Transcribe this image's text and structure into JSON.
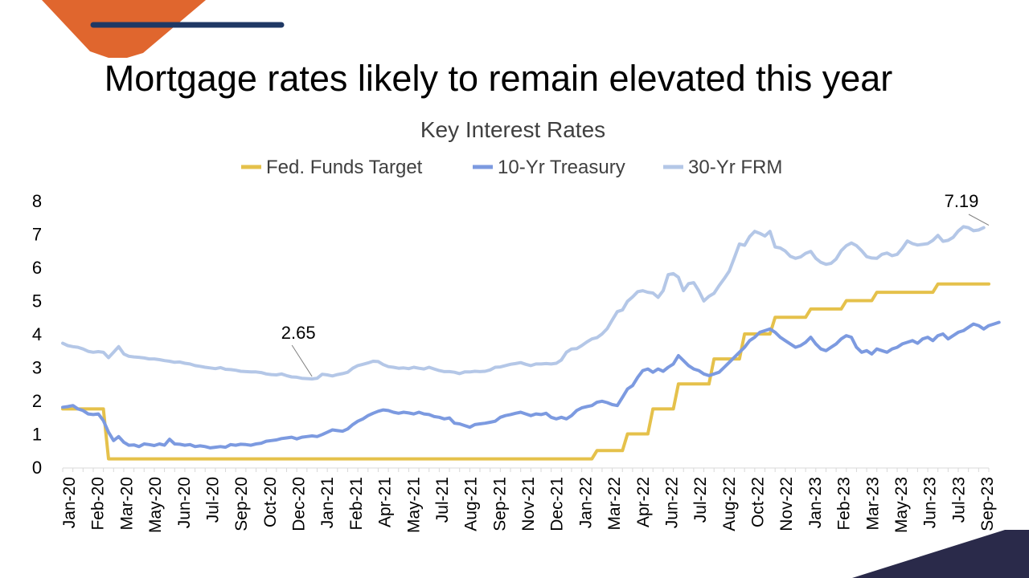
{
  "slide": {
    "title": "Mortgage rates likely to remain elevated this year"
  },
  "chart_data": {
    "type": "line",
    "title": "Key Interest Rates",
    "xlabel": "",
    "ylabel": "",
    "ylim": [
      0,
      8
    ],
    "yticks": [
      "0",
      "1",
      "2",
      "3",
      "4",
      "5",
      "6",
      "7",
      "8"
    ],
    "legend_position": "top-center",
    "xticks": [
      "Jan-20",
      "Feb-20",
      "Mar-20",
      "May-20",
      "Jun-20",
      "Jul-20",
      "Sep-20",
      "Oct-20",
      "Dec-20",
      "Jan-21",
      "Feb-21",
      "Apr-21",
      "May-21",
      "Jul-21",
      "Aug-21",
      "Sep-21",
      "Nov-21",
      "Dec-21",
      "Jan-22",
      "Mar-22",
      "Apr-22",
      "Jun-22",
      "Jul-22",
      "Aug-22",
      "Oct-22",
      "Nov-22",
      "Jan-23",
      "Feb-23",
      "Mar-23",
      "May-23",
      "Jun-23",
      "Jul-23",
      "Sep-23"
    ],
    "series": [
      {
        "name": "Fed. Funds Target",
        "color": "#E5C14B",
        "values": [
          1.75,
          1.75,
          1.75,
          1.75,
          1.75,
          1.75,
          1.75,
          1.75,
          1.75,
          0.25,
          0.25,
          0.25,
          0.25,
          0.25,
          0.25,
          0.25,
          0.25,
          0.25,
          0.25,
          0.25,
          0.25,
          0.25,
          0.25,
          0.25,
          0.25,
          0.25,
          0.25,
          0.25,
          0.25,
          0.25,
          0.25,
          0.25,
          0.25,
          0.25,
          0.25,
          0.25,
          0.25,
          0.25,
          0.25,
          0.25,
          0.25,
          0.25,
          0.25,
          0.25,
          0.25,
          0.25,
          0.25,
          0.25,
          0.25,
          0.25,
          0.25,
          0.25,
          0.25,
          0.25,
          0.25,
          0.25,
          0.25,
          0.25,
          0.25,
          0.25,
          0.25,
          0.25,
          0.25,
          0.25,
          0.25,
          0.25,
          0.25,
          0.25,
          0.25,
          0.25,
          0.25,
          0.25,
          0.25,
          0.25,
          0.25,
          0.25,
          0.25,
          0.25,
          0.25,
          0.25,
          0.25,
          0.25,
          0.25,
          0.25,
          0.25,
          0.25,
          0.25,
          0.25,
          0.25,
          0.25,
          0.25,
          0.25,
          0.25,
          0.25,
          0.25,
          0.25,
          0.25,
          0.25,
          0.25,
          0.25,
          0.25,
          0.25,
          0.25,
          0.25,
          0.25,
          0.5,
          0.5,
          0.5,
          0.5,
          0.5,
          0.5,
          1.0,
          1.0,
          1.0,
          1.0,
          1.0,
          1.75,
          1.75,
          1.75,
          1.75,
          1.75,
          2.5,
          2.5,
          2.5,
          2.5,
          2.5,
          2.5,
          2.5,
          3.25,
          3.25,
          3.25,
          3.25,
          3.25,
          3.25,
          4.0,
          4.0,
          4.0,
          4.0,
          4.0,
          4.0,
          4.5,
          4.5,
          4.5,
          4.5,
          4.5,
          4.5,
          4.5,
          4.75,
          4.75,
          4.75,
          4.75,
          4.75,
          4.75,
          4.75,
          5.0,
          5.0,
          5.0,
          5.0,
          5.0,
          5.0,
          5.25,
          5.25,
          5.25,
          5.25,
          5.25,
          5.25,
          5.25,
          5.25,
          5.25,
          5.25,
          5.25,
          5.25,
          5.5,
          5.5,
          5.5,
          5.5,
          5.5,
          5.5,
          5.5,
          5.5,
          5.5,
          5.5,
          5.5
        ]
      },
      {
        "name": "10-Yr Treasury",
        "color": "#7C9AE0",
        "values": [
          1.8,
          1.82,
          1.85,
          1.75,
          1.7,
          1.6,
          1.58,
          1.6,
          1.4,
          1.05,
          0.8,
          0.92,
          0.75,
          0.66,
          0.67,
          0.62,
          0.7,
          0.68,
          0.65,
          0.7,
          0.66,
          0.84,
          0.7,
          0.69,
          0.66,
          0.68,
          0.62,
          0.64,
          0.62,
          0.58,
          0.6,
          0.62,
          0.6,
          0.68,
          0.66,
          0.69,
          0.68,
          0.66,
          0.7,
          0.72,
          0.78,
          0.8,
          0.82,
          0.86,
          0.88,
          0.9,
          0.85,
          0.9,
          0.92,
          0.94,
          0.92,
          0.98,
          1.05,
          1.12,
          1.1,
          1.08,
          1.15,
          1.28,
          1.38,
          1.45,
          1.55,
          1.62,
          1.68,
          1.72,
          1.7,
          1.65,
          1.62,
          1.65,
          1.63,
          1.6,
          1.65,
          1.6,
          1.58,
          1.52,
          1.5,
          1.45,
          1.48,
          1.32,
          1.3,
          1.25,
          1.2,
          1.28,
          1.3,
          1.32,
          1.35,
          1.38,
          1.5,
          1.55,
          1.58,
          1.62,
          1.65,
          1.6,
          1.55,
          1.6,
          1.58,
          1.62,
          1.5,
          1.45,
          1.5,
          1.45,
          1.55,
          1.7,
          1.78,
          1.82,
          1.85,
          1.95,
          1.98,
          1.94,
          1.88,
          1.85,
          2.1,
          2.35,
          2.45,
          2.7,
          2.9,
          2.95,
          2.85,
          2.95,
          2.88,
          3.0,
          3.1,
          3.35,
          3.2,
          3.05,
          2.95,
          2.9,
          2.8,
          2.75,
          2.8,
          2.85,
          3.0,
          3.15,
          3.3,
          3.45,
          3.6,
          3.8,
          3.9,
          4.05,
          4.1,
          4.15,
          4.05,
          3.9,
          3.8,
          3.7,
          3.6,
          3.65,
          3.75,
          3.9,
          3.7,
          3.55,
          3.5,
          3.6,
          3.7,
          3.85,
          3.95,
          3.9,
          3.6,
          3.45,
          3.5,
          3.4,
          3.55,
          3.5,
          3.45,
          3.55,
          3.6,
          3.7,
          3.75,
          3.8,
          3.72,
          3.85,
          3.9,
          3.8,
          3.95,
          4.0,
          3.85,
          3.95,
          4.05,
          4.1,
          4.2,
          4.3,
          4.25,
          4.15,
          4.25,
          4.3,
          4.35
        ]
      },
      {
        "name": "30-Yr FRM",
        "color": "#B4C7E7",
        "values": [
          3.72,
          3.65,
          3.62,
          3.6,
          3.55,
          3.48,
          3.45,
          3.47,
          3.45,
          3.29,
          3.45,
          3.62,
          3.4,
          3.33,
          3.31,
          3.3,
          3.28,
          3.25,
          3.25,
          3.23,
          3.2,
          3.18,
          3.15,
          3.16,
          3.12,
          3.1,
          3.05,
          3.03,
          3.0,
          2.98,
          2.96,
          2.99,
          2.94,
          2.93,
          2.91,
          2.88,
          2.87,
          2.86,
          2.86,
          2.84,
          2.8,
          2.78,
          2.77,
          2.8,
          2.75,
          2.71,
          2.7,
          2.67,
          2.66,
          2.65,
          2.67,
          2.79,
          2.77,
          2.74,
          2.78,
          2.81,
          2.85,
          2.97,
          3.05,
          3.09,
          3.13,
          3.18,
          3.17,
          3.08,
          3.02,
          3.0,
          2.97,
          2.98,
          2.96,
          3.0,
          2.97,
          2.95,
          3.0,
          2.95,
          2.9,
          2.87,
          2.87,
          2.85,
          2.81,
          2.86,
          2.86,
          2.88,
          2.87,
          2.88,
          2.92,
          3.0,
          3.01,
          3.05,
          3.09,
          3.11,
          3.14,
          3.09,
          3.05,
          3.1,
          3.1,
          3.11,
          3.1,
          3.12,
          3.22,
          3.45,
          3.55,
          3.56,
          3.65,
          3.76,
          3.85,
          3.89,
          4.0,
          4.16,
          4.42,
          4.67,
          4.72,
          4.98,
          5.11,
          5.27,
          5.3,
          5.25,
          5.23,
          5.1,
          5.3,
          5.78,
          5.81,
          5.7,
          5.3,
          5.51,
          5.54,
          5.3,
          4.99,
          5.13,
          5.22,
          5.45,
          5.66,
          5.89,
          6.29,
          6.7,
          6.66,
          6.92,
          7.08,
          7.02,
          6.94,
          7.08,
          6.61,
          6.58,
          6.49,
          6.33,
          6.27,
          6.31,
          6.42,
          6.48,
          6.27,
          6.15,
          6.09,
          6.12,
          6.25,
          6.5,
          6.65,
          6.73,
          6.65,
          6.5,
          6.32,
          6.28,
          6.27,
          6.39,
          6.43,
          6.35,
          6.39,
          6.57,
          6.79,
          6.71,
          6.67,
          6.69,
          6.71,
          6.81,
          6.96,
          6.78,
          6.81,
          6.9,
          7.09,
          7.22,
          7.19,
          7.1,
          7.12,
          7.19
        ]
      }
    ],
    "annotations": [
      {
        "label": "2.65",
        "series": "30-Yr FRM",
        "value": 2.65,
        "index": 49
      },
      {
        "label": "7.19",
        "series": "30-Yr FRM",
        "value": 7.19,
        "index": 182
      }
    ]
  },
  "colors": {
    "accent_orange": "#E0662E",
    "accent_navy": "#1F3864",
    "corner_navy": "#2A2A4A"
  }
}
